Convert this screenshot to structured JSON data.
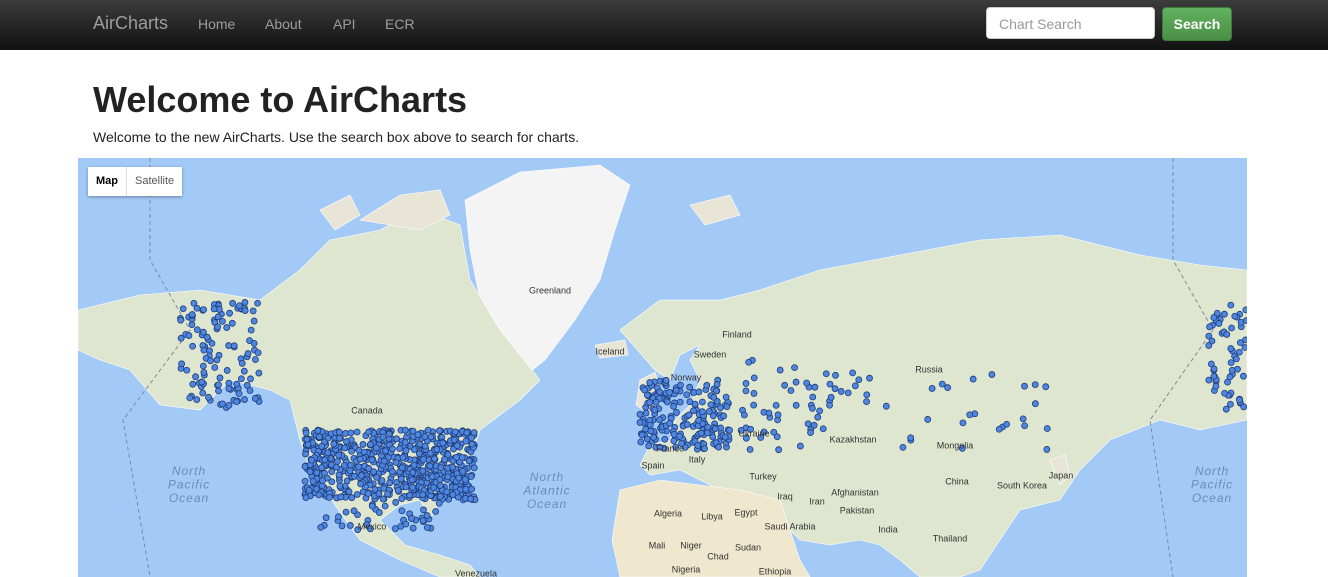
{
  "navbar": {
    "brand": "AirCharts",
    "links": [
      "Home",
      "About",
      "API",
      "ECR"
    ],
    "search_placeholder": "Chart Search",
    "search_button": "Search"
  },
  "main": {
    "title": "Welcome to AirCharts",
    "intro": "Welcome to the new AirCharts. Use the search box above to search for charts."
  },
  "map": {
    "controls": [
      "Map",
      "Satellite"
    ],
    "labels": [
      "Greenland",
      "Iceland",
      "Finland",
      "Sweden",
      "Norway",
      "Russia",
      "Canada",
      "Ukraine",
      "Kazakhstan",
      "Mongolia",
      "France",
      "Spain",
      "Italy",
      "Turkey",
      "China",
      "South Korea",
      "Japan",
      "Iraq",
      "Iran",
      "Afghanistan",
      "Pakistan",
      "India",
      "Algeria",
      "Libya",
      "Egypt",
      "Saudi Arabia",
      "Mali",
      "Niger",
      "Chad",
      "Sudan",
      "Nigeria",
      "Ethiopia",
      "Thailand",
      "Mexico",
      "Venezuela"
    ],
    "oceans": [
      [
        "North",
        "Pacific",
        "Ocean"
      ],
      [
        "North",
        "Atlantic",
        "Ocean"
      ],
      [
        "North",
        "Pacific",
        "Ocean"
      ]
    ]
  }
}
